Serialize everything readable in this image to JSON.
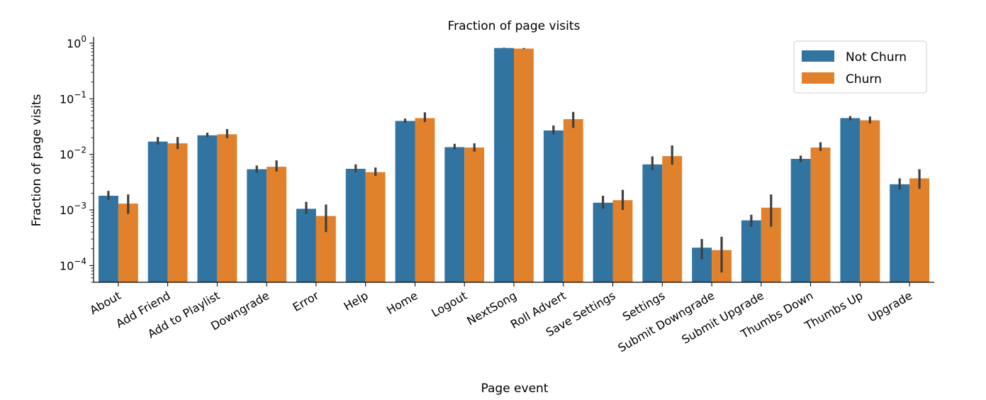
{
  "chart_data": {
    "type": "bar",
    "title": "Fraction of page visits",
    "xlabel": "Page event",
    "ylabel": "Fraction of page visits",
    "yscale": "log",
    "ylim": [
      5e-05,
      1.3
    ],
    "y_ticks": [
      {
        "value": 0.0001,
        "base": "10",
        "exp": "−4"
      },
      {
        "value": 0.001,
        "base": "10",
        "exp": "−3"
      },
      {
        "value": 0.01,
        "base": "10",
        "exp": "−2"
      },
      {
        "value": 0.1,
        "base": "10",
        "exp": "−1"
      },
      {
        "value": 1,
        "base": "10",
        "exp": "0"
      }
    ],
    "categories": [
      "About",
      "Add Friend",
      "Add to Playlist",
      "Downgrade",
      "Error",
      "Help",
      "Home",
      "Logout",
      "NextSong",
      "Roll Advert",
      "Save Settings",
      "Settings",
      "Submit Downgrade",
      "Submit Upgrade",
      "Thumbs Down",
      "Thumbs Up",
      "Upgrade"
    ],
    "series": [
      {
        "name": "Not Churn",
        "color": "#3274a1",
        "values": [
          0.0018,
          0.017,
          0.022,
          0.0054,
          0.00105,
          0.0055,
          0.04,
          0.0135,
          0.82,
          0.027,
          0.00135,
          0.0066,
          0.00021,
          0.00065,
          0.0083,
          0.045,
          0.0029
        ],
        "err_low": [
          0.0015,
          0.015,
          0.0205,
          0.0047,
          0.00085,
          0.0048,
          0.037,
          0.0123,
          0.81,
          0.023,
          0.00105,
          0.0052,
          0.00013,
          0.0005,
          0.0073,
          0.041,
          0.0023
        ],
        "err_high": [
          0.0022,
          0.0205,
          0.0245,
          0.0063,
          0.0014,
          0.0066,
          0.044,
          0.0155,
          0.83,
          0.033,
          0.0018,
          0.0092,
          0.0003,
          0.00082,
          0.0095,
          0.049,
          0.0037
        ]
      },
      {
        "name": "Churn",
        "color": "#e1812c",
        "values": [
          0.0013,
          0.0158,
          0.023,
          0.006,
          0.00078,
          0.0048,
          0.045,
          0.0133,
          0.8,
          0.043,
          0.0015,
          0.0093,
          0.00019,
          0.0011,
          0.0133,
          0.041,
          0.0037
        ],
        "err_low": [
          0.00085,
          0.0125,
          0.0195,
          0.0049,
          0.0004,
          0.0041,
          0.038,
          0.0112,
          0.79,
          0.03,
          0.001,
          0.0065,
          7.5e-05,
          0.0005,
          0.0115,
          0.036,
          0.0024
        ],
        "err_high": [
          0.0019,
          0.0205,
          0.0285,
          0.0078,
          0.00125,
          0.0058,
          0.057,
          0.0158,
          0.82,
          0.058,
          0.0023,
          0.0145,
          0.00033,
          0.0019,
          0.0165,
          0.048,
          0.0054
        ]
      }
    ],
    "legend": {
      "position": "upper right",
      "entries": [
        "Not Churn",
        "Churn"
      ]
    },
    "grid": false
  }
}
